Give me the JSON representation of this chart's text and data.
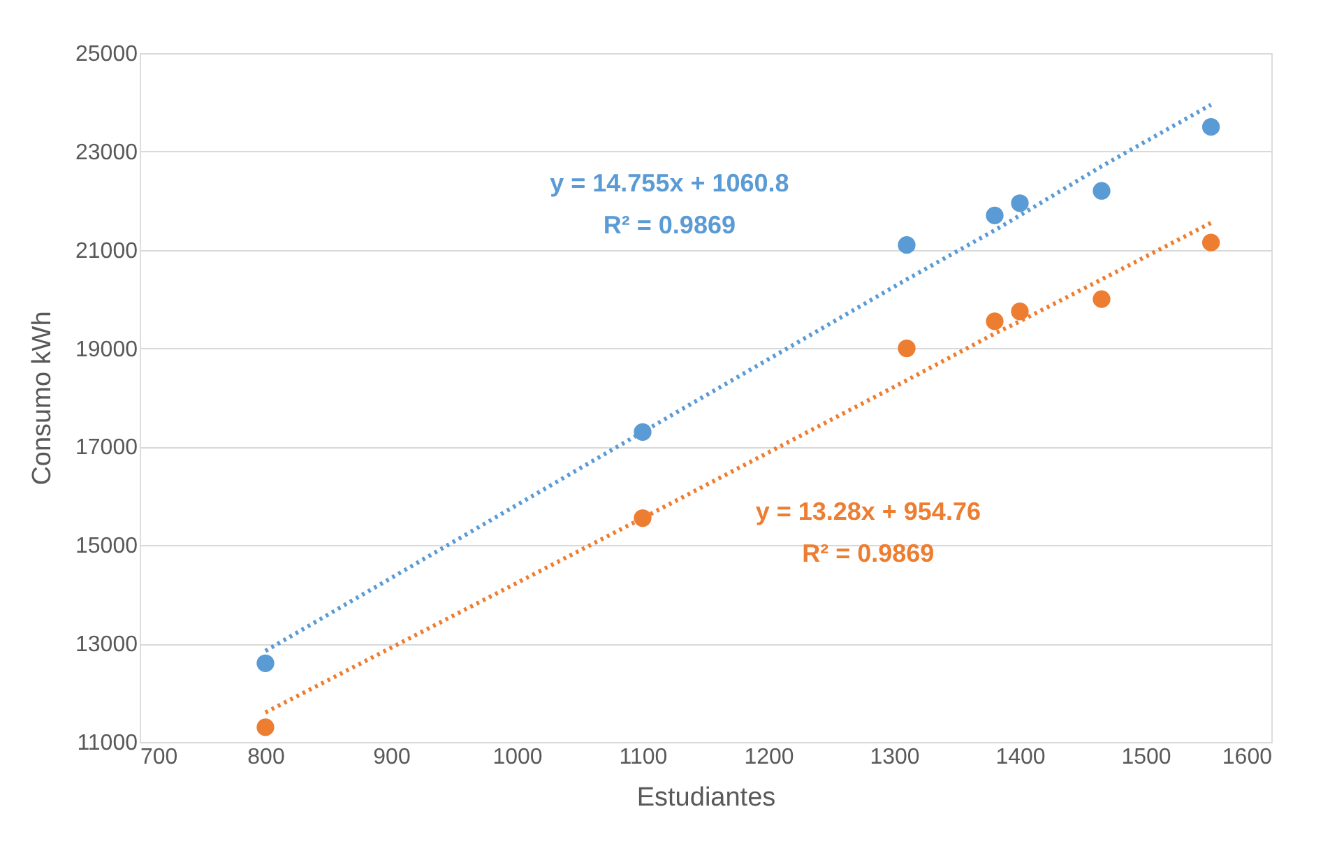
{
  "chart_data": {
    "type": "scatter",
    "xlabel": "Estudiantes",
    "ylabel": "Consumo kWh",
    "x": [
      800,
      1100,
      1310,
      1380,
      1400,
      1465,
      1552
    ],
    "series": [
      {
        "color": "#5b9bd5",
        "values": [
          12600,
          17300,
          21100,
          21700,
          21950,
          22200,
          23500
        ]
      },
      {
        "color": "#ed7d31",
        "values": [
          11300,
          15550,
          19000,
          19550,
          19750,
          20000,
          21150
        ]
      },
      {
        "type": "line",
        "line_style": "dotted",
        "marker": "none",
        "color": "#5b9bd5",
        "values": [
          12850,
          17300,
          20400,
          21400,
          21700,
          22700,
          23950
        ]
      },
      {
        "type": "line",
        "line_style": "dotted",
        "marker": "none",
        "color": "#ed7d31",
        "values": [
          11600,
          15550,
          18350,
          19300,
          19550,
          20400,
          21550
        ]
      }
    ],
    "annotations": [
      "y = 14.755x + 1060.8",
      "R² = 0.9869",
      "y = 13.28x + 954.76",
      "R² = 0.9869"
    ],
    "xlim": [
      700,
      1600
    ],
    "xticks": [
      700,
      800,
      900,
      1000,
      1100,
      1200,
      1300,
      1400,
      1500,
      1600
    ],
    "ylim": [
      11000,
      25000
    ],
    "yticks": [
      11000,
      13000,
      15000,
      17000,
      19000,
      21000,
      23000,
      25000
    ],
    "grid": "y",
    "marker": "circle"
  }
}
